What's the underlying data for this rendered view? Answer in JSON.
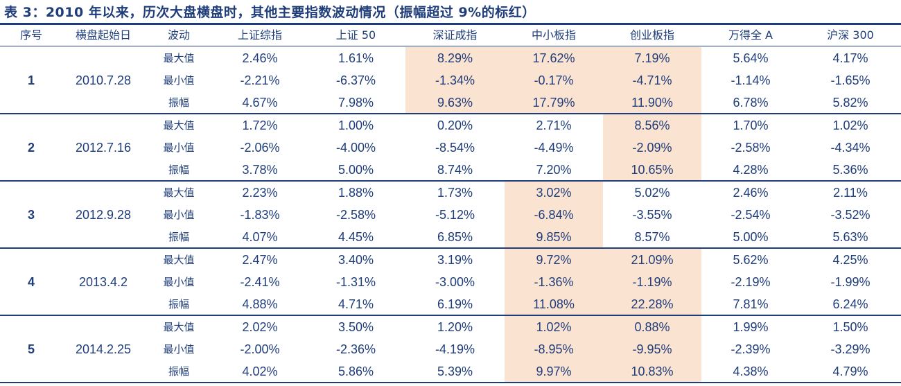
{
  "title": "表 3：2010 年以来，历次大盘横盘时，其他主要指数波动情况（振幅超过 9%的标红）",
  "colors": {
    "text": "#1f3d7a",
    "highlight": "#fbe3d2",
    "rule": "#1f3d7a"
  },
  "headers": [
    "序号",
    "横盘起始日",
    "波动",
    "上证综指",
    "上证 50",
    "深证成指",
    "中小板指",
    "创业板指",
    "万得全 A",
    "沪深 300"
  ],
  "groups": [
    {
      "num": "1",
      "date": "2010.7.28",
      "highlight_columns": [
        2,
        3,
        4
      ],
      "rows": [
        {
          "label": "最大值",
          "values": [
            "2.46%",
            "1.61%",
            "8.29%",
            "17.62%",
            "7.19%",
            "5.64%",
            "4.17%"
          ]
        },
        {
          "label": "最小值",
          "values": [
            "-2.21%",
            "-6.37%",
            "-1.34%",
            "-0.17%",
            "-4.71%",
            "-1.14%",
            "-1.65%"
          ]
        },
        {
          "label": "振幅",
          "values": [
            "4.67%",
            "7.98%",
            "9.63%",
            "17.79%",
            "11.90%",
            "6.78%",
            "5.82%"
          ]
        }
      ]
    },
    {
      "num": "2",
      "date": "2012.7.16",
      "highlight_columns": [
        4
      ],
      "rows": [
        {
          "label": "最大值",
          "values": [
            "1.72%",
            "1.00%",
            "0.20%",
            "2.71%",
            "8.56%",
            "1.70%",
            "1.02%"
          ]
        },
        {
          "label": "最小值",
          "values": [
            "-2.06%",
            "-4.00%",
            "-8.54%",
            "-4.49%",
            "-2.09%",
            "-2.58%",
            "-4.34%"
          ]
        },
        {
          "label": "振幅",
          "values": [
            "3.78%",
            "5.00%",
            "8.74%",
            "7.20%",
            "10.65%",
            "4.28%",
            "5.36%"
          ]
        }
      ]
    },
    {
      "num": "3",
      "date": "2012.9.28",
      "highlight_columns": [
        3
      ],
      "rows": [
        {
          "label": "最大值",
          "values": [
            "2.23%",
            "1.88%",
            "1.73%",
            "3.02%",
            "5.02%",
            "2.46%",
            "2.11%"
          ]
        },
        {
          "label": "最小值",
          "values": [
            "-1.83%",
            "-2.58%",
            "-5.12%",
            "-6.84%",
            "-3.55%",
            "-2.54%",
            "-3.52%"
          ]
        },
        {
          "label": "振幅",
          "values": [
            "4.07%",
            "4.45%",
            "6.85%",
            "9.85%",
            "8.57%",
            "5.00%",
            "5.63%"
          ]
        }
      ]
    },
    {
      "num": "4",
      "date": "2013.4.2",
      "highlight_columns": [
        3,
        4
      ],
      "rows": [
        {
          "label": "最大值",
          "values": [
            "2.47%",
            "3.40%",
            "3.19%",
            "9.72%",
            "21.09%",
            "5.62%",
            "4.25%"
          ]
        },
        {
          "label": "最小值",
          "values": [
            "-2.41%",
            "-1.31%",
            "-3.00%",
            "-1.36%",
            "-1.19%",
            "-2.19%",
            "-1.99%"
          ]
        },
        {
          "label": "振幅",
          "values": [
            "4.88%",
            "4.71%",
            "6.19%",
            "11.08%",
            "22.28%",
            "7.81%",
            "6.24%"
          ]
        }
      ]
    },
    {
      "num": "5",
      "date": "2014.2.25",
      "highlight_columns": [
        3,
        4
      ],
      "rows": [
        {
          "label": "最大值",
          "values": [
            "2.02%",
            "3.50%",
            "1.20%",
            "1.02%",
            "0.88%",
            "1.99%",
            "1.50%"
          ]
        },
        {
          "label": "最小值",
          "values": [
            "-2.00%",
            "-2.36%",
            "-4.19%",
            "-8.95%",
            "-9.95%",
            "-2.39%",
            "-3.29%"
          ]
        },
        {
          "label": "振幅",
          "values": [
            "4.02%",
            "5.86%",
            "5.39%",
            "9.97%",
            "10.83%",
            "4.38%",
            "4.79%"
          ]
        }
      ]
    }
  ]
}
